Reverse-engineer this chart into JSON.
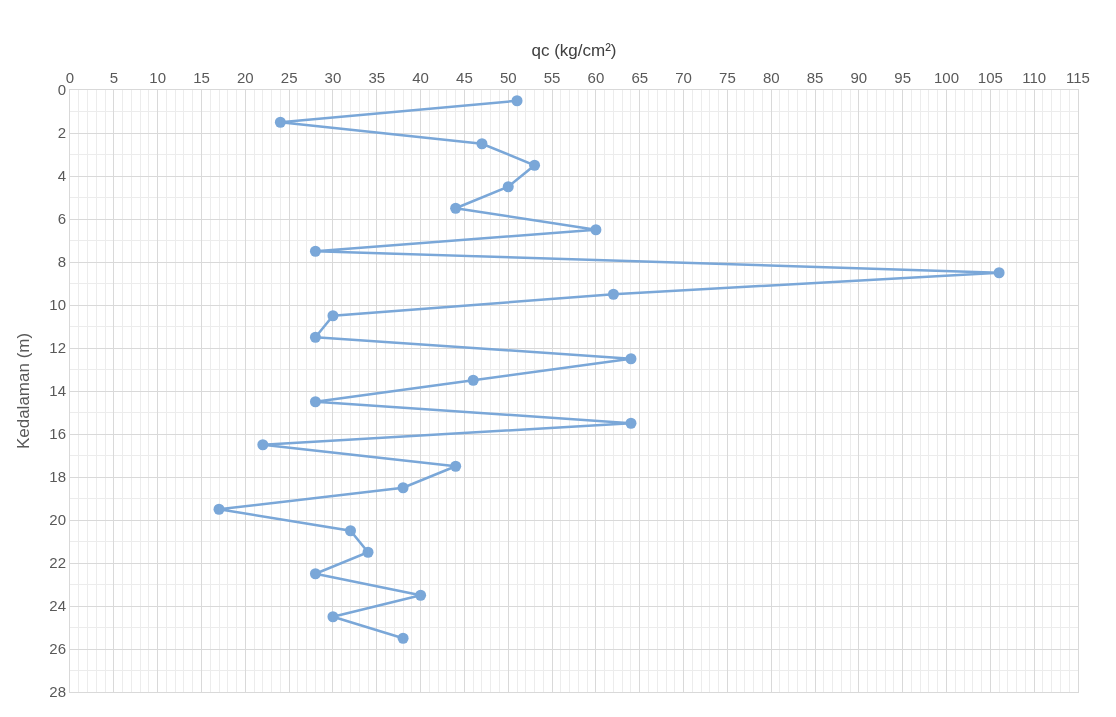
{
  "chart_data": {
    "type": "line",
    "orientation": "horizontal",
    "xlabel": "qc (kg/cm²)",
    "ylabel": "Kedalaman (m)",
    "x": [
      0.5,
      1.5,
      2.5,
      3.5,
      4.5,
      5.5,
      6.5,
      7.5,
      8.5,
      9.5,
      10.5,
      11.5,
      12.5,
      13.5,
      14.5,
      15.5,
      16.5,
      17.5,
      18.5,
      19.5,
      20.5,
      21.5,
      22.5,
      23.5,
      24.5,
      25.5
    ],
    "series": [
      {
        "color": "#7aa7d8",
        "values": [
          51,
          24,
          47,
          53,
          50,
          44,
          60,
          28,
          106,
          62,
          30,
          28,
          64,
          46,
          28,
          64,
          22,
          44,
          38,
          17,
          32,
          34,
          28,
          40,
          30,
          38
        ]
      }
    ],
    "xlim": [
      0,
      115
    ],
    "xticks": [
      0,
      5,
      10,
      15,
      20,
      25,
      30,
      35,
      40,
      45,
      50,
      55,
      60,
      65,
      70,
      75,
      80,
      85,
      90,
      95,
      100,
      105,
      110,
      115
    ],
    "ylim": [
      28,
      0
    ],
    "yticks": [
      0,
      2,
      4,
      6,
      8,
      10,
      12,
      14,
      16,
      18,
      20,
      22,
      24,
      26,
      28
    ],
    "grid": true,
    "marker": "circle",
    "line_style": "solid"
  }
}
